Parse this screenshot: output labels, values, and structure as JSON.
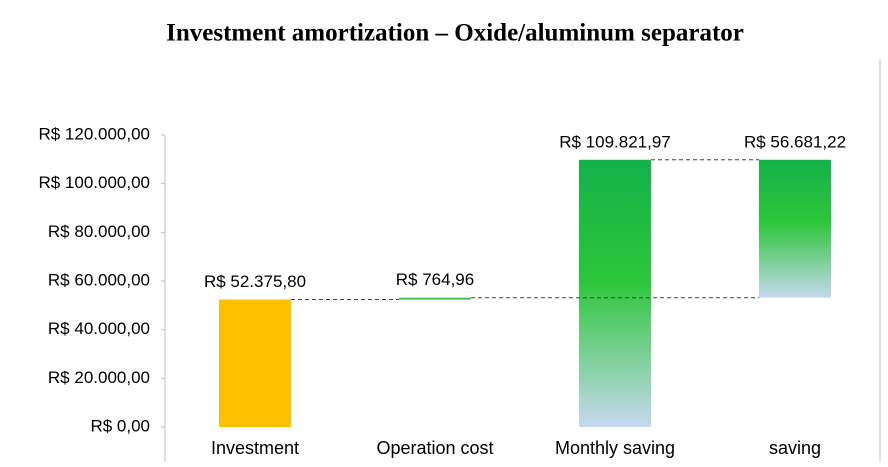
{
  "chart_data": {
    "type": "waterfall",
    "title": "Investment amortization – Oxide/aluminum separator",
    "categories": [
      "Investment",
      "Operation cost",
      "Monthly saving",
      "saving"
    ],
    "values": [
      52375.8,
      764.96,
      109821.97,
      56681.22
    ],
    "value_labels": [
      "R$ 52.375,80",
      "R$ 764,96",
      "R$ 109.821,97",
      "R$ 56.681,22"
    ],
    "measures": [
      "increase",
      "increase",
      "total",
      "decrease"
    ],
    "colors": [
      "#ffc000",
      "#3cbf4a",
      "#14b24a",
      "#14b24a"
    ],
    "ylim": [
      0,
      120000
    ],
    "yticks": [
      {
        "value": 0,
        "label": "R$ 0,00"
      },
      {
        "value": 20000,
        "label": "R$ 20.000,00"
      },
      {
        "value": 40000,
        "label": "R$ 40.000,00"
      },
      {
        "value": 60000,
        "label": "R$ 60.000,00"
      },
      {
        "value": 80000,
        "label": "R$ 80.000,00"
      },
      {
        "value": 100000,
        "label": "R$ 100.000,00"
      },
      {
        "value": 120000,
        "label": "R$ 120.000,00"
      }
    ],
    "grid": false
  }
}
